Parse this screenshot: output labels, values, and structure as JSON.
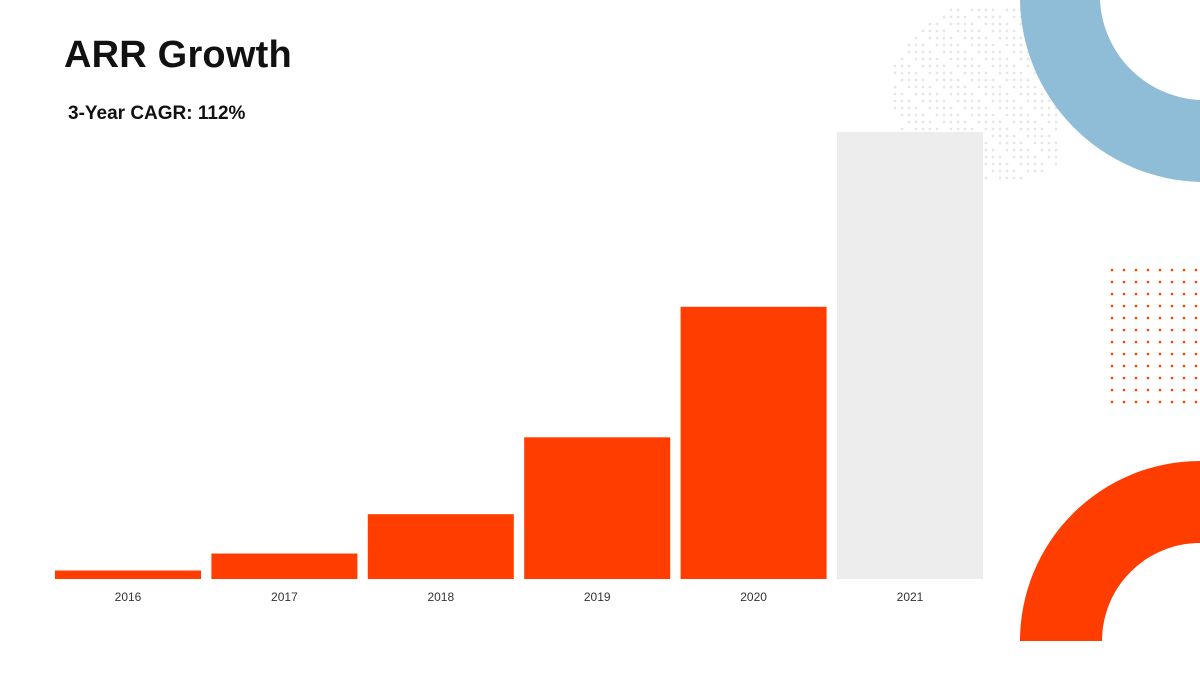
{
  "slide": {
    "title": "ARR Growth",
    "subtitle": "3-Year CAGR: 112%"
  },
  "colors": {
    "accent": "#FF3D00",
    "forecast": "#EDEDED",
    "blue_ring": "#8FBCD6"
  },
  "chart_data": {
    "type": "bar",
    "categories": [
      "2016",
      "2017",
      "2018",
      "2019",
      "2020",
      "2021"
    ],
    "values": [
      1.9,
      5.7,
      14.5,
      31.7,
      60.9,
      100
    ],
    "bar_colors": [
      "#FF3D00",
      "#FF3D00",
      "#FF3D00",
      "#FF3D00",
      "#FF3D00",
      "#EDEDED"
    ],
    "title": "",
    "xlabel": "",
    "ylabel": "",
    "ylim": [
      0,
      100
    ],
    "grid": false,
    "legend": "none"
  }
}
